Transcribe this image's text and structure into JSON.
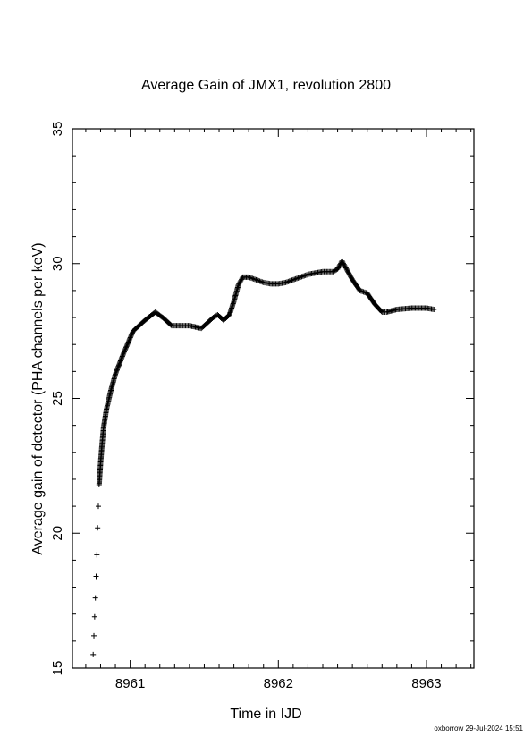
{
  "chart_data": {
    "type": "scatter",
    "title": "Average Gain of JMX1, revolution 2800",
    "xlabel": "Time in IJD",
    "ylabel": "Average gain of detector (PHA channels per keV)",
    "xlim": [
      8960.61,
      8963.32
    ],
    "ylim": [
      15,
      35
    ],
    "xticks": [
      8961,
      8962,
      8963
    ],
    "yticks": [
      15,
      20,
      25,
      30,
      35
    ],
    "marker": "+",
    "grid": false,
    "x": [
      8960.75,
      8960.755,
      8960.76,
      8960.765,
      8960.77,
      8960.775,
      8960.78,
      8960.785,
      8960.79,
      8960.8,
      8960.81,
      8960.82,
      8960.84,
      8960.87,
      8960.9,
      8960.95,
      8961.02,
      8961.1,
      8961.17,
      8961.22,
      8961.28,
      8961.33,
      8961.4,
      8961.48,
      8961.52,
      8961.56,
      8961.59,
      8961.63,
      8961.67,
      8961.7,
      8961.73,
      8961.76,
      8961.8,
      8961.85,
      8961.9,
      8961.95,
      8962.0,
      8962.05,
      8962.1,
      8962.15,
      8962.2,
      8962.25,
      8962.3,
      8962.37,
      8962.4,
      8962.43,
      8962.46,
      8962.5,
      8962.55,
      8962.6,
      8962.65,
      8962.7,
      8962.73,
      8962.8,
      8962.9,
      8963.0,
      8963.05
    ],
    "y": [
      15.5,
      16.2,
      16.9,
      17.6,
      18.4,
      19.2,
      20.2,
      21.0,
      21.8,
      22.6,
      23.3,
      23.9,
      24.6,
      25.3,
      25.9,
      26.6,
      27.5,
      27.9,
      28.2,
      28.0,
      27.7,
      27.7,
      27.7,
      27.6,
      27.8,
      28.0,
      28.1,
      27.9,
      28.1,
      28.6,
      29.2,
      29.5,
      29.5,
      29.4,
      29.3,
      29.25,
      29.25,
      29.3,
      29.4,
      29.5,
      29.6,
      29.65,
      29.7,
      29.7,
      29.8,
      30.1,
      29.8,
      29.4,
      29.0,
      28.9,
      28.5,
      28.2,
      28.2,
      28.3,
      28.35,
      28.35,
      28.3
    ]
  },
  "footer": "oxborrow 29-Jul-2024 15:51"
}
